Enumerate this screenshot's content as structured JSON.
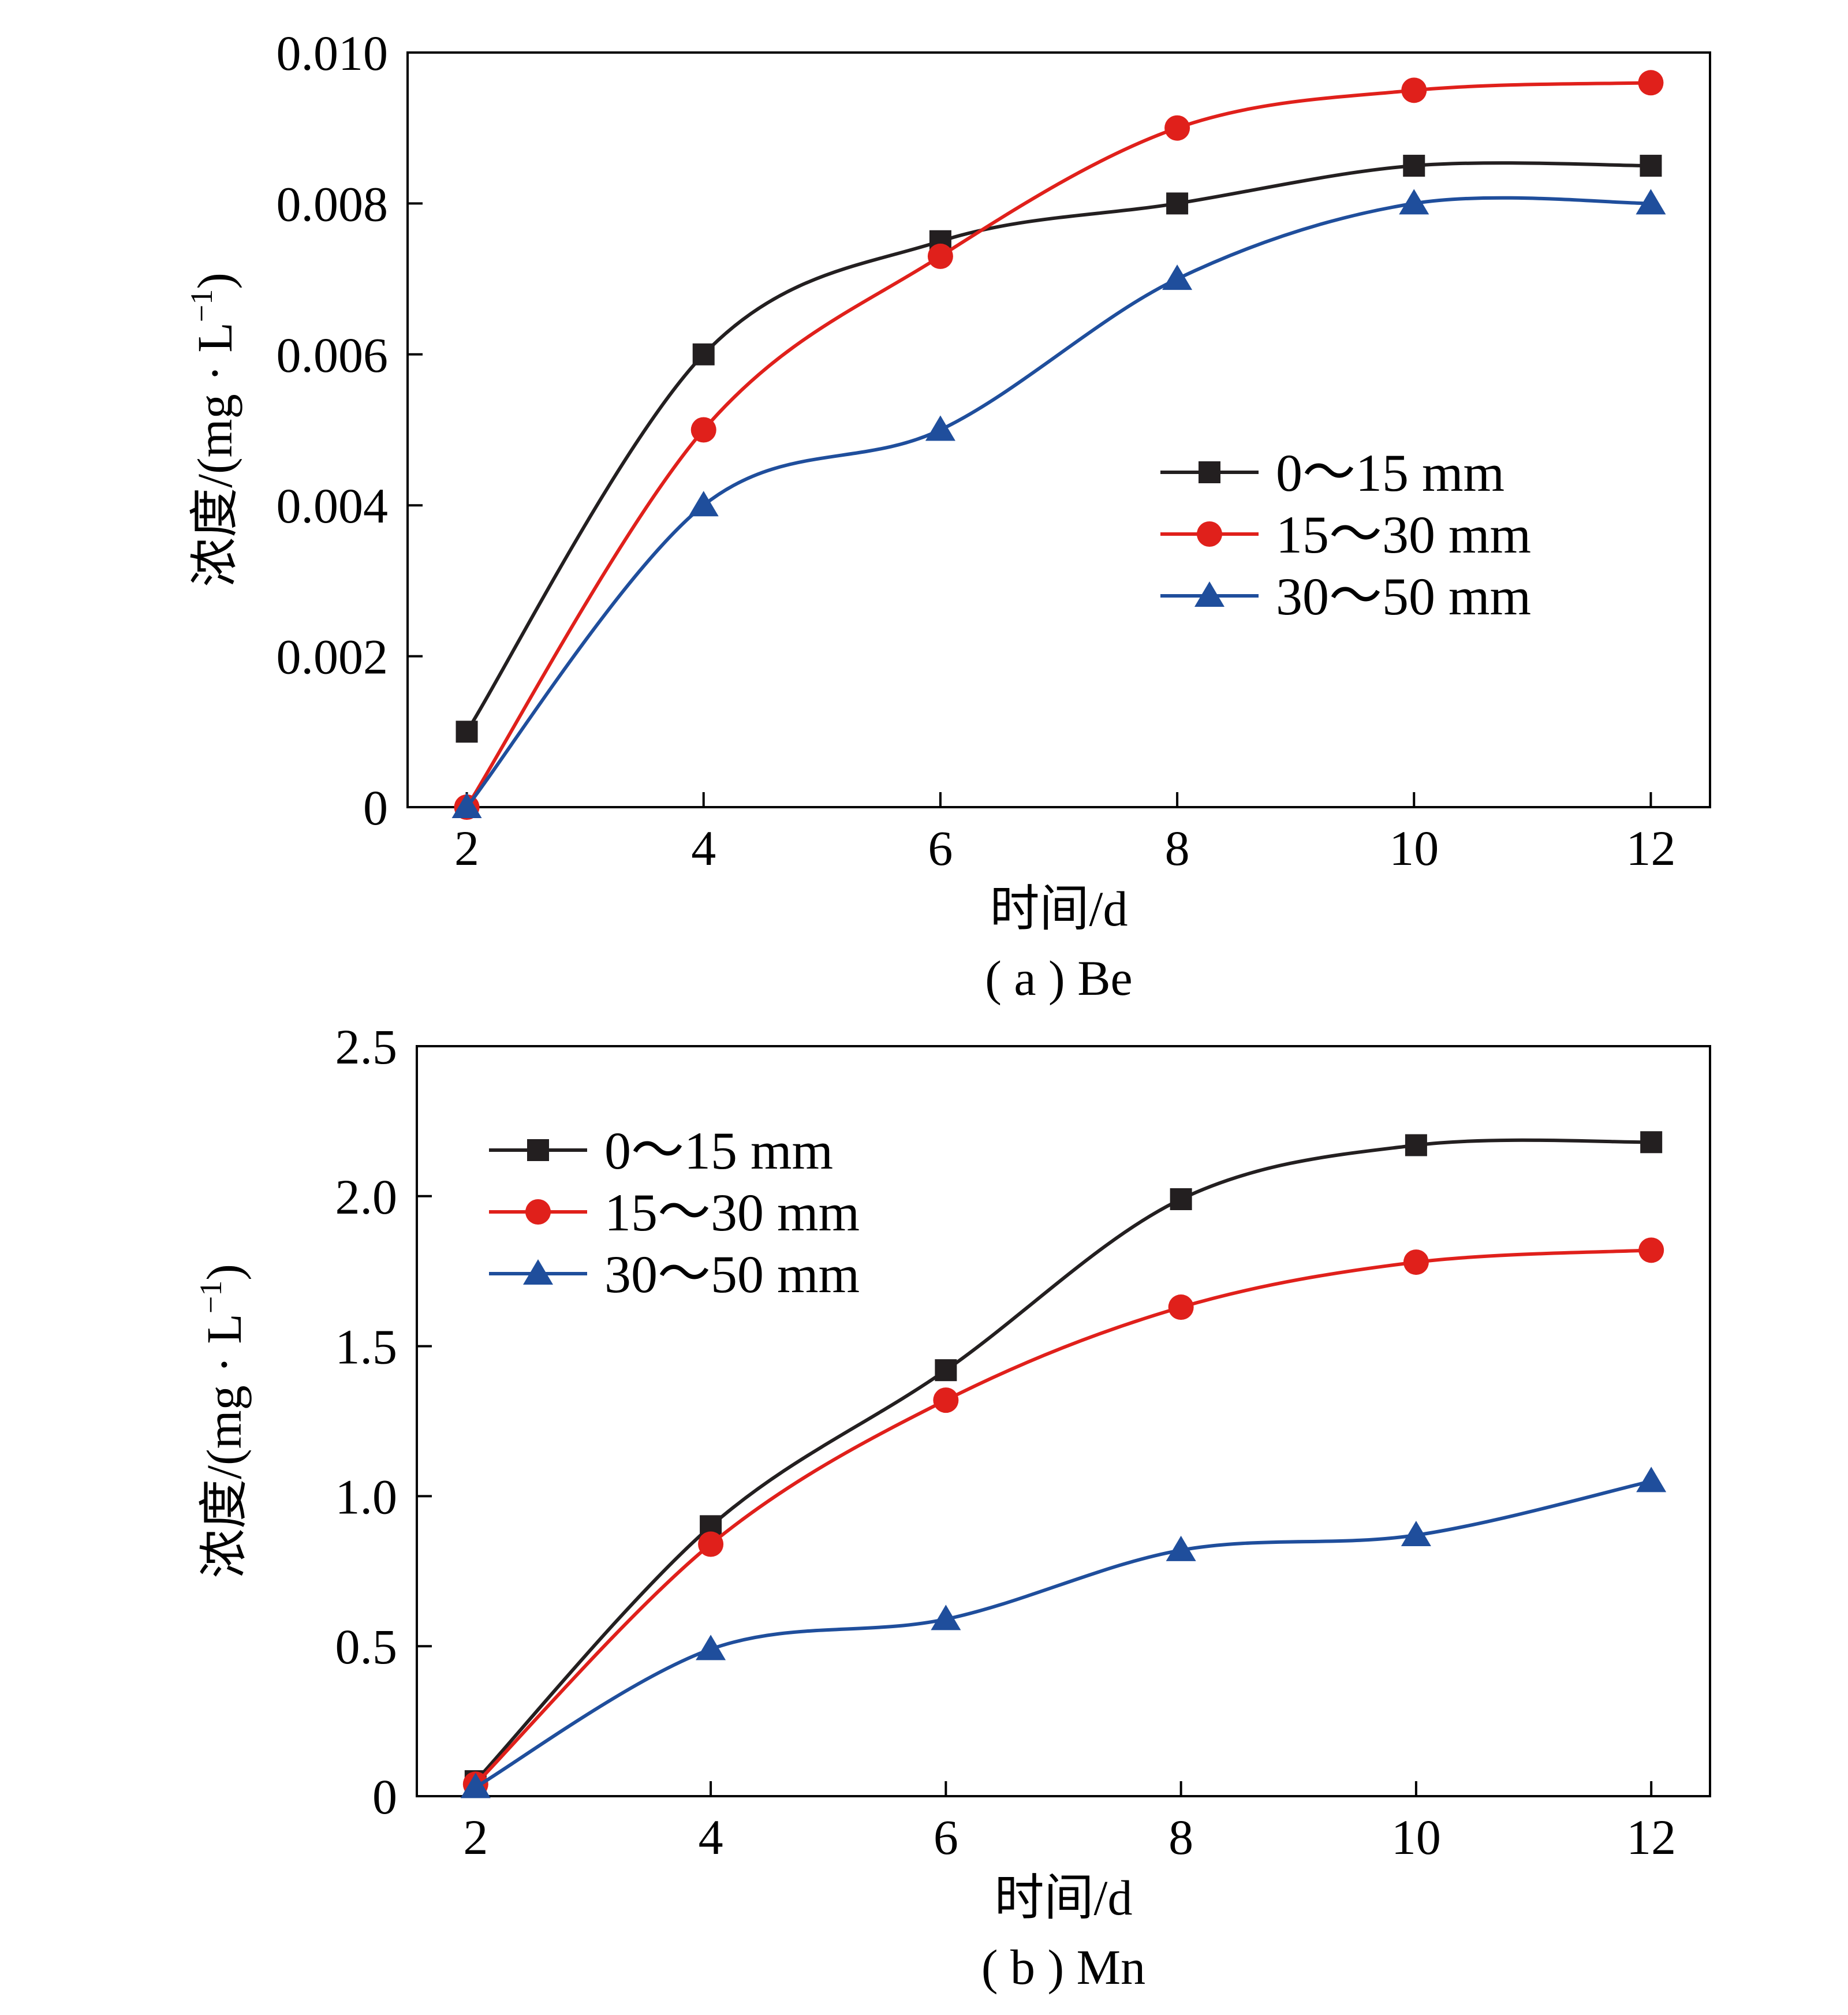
{
  "chart_data": [
    {
      "type": "line",
      "caption": "( a ) Be",
      "xlabel": "时间/d",
      "ylabel": "浓度/(mg · L",
      "ylabel_sup": "−1",
      "ylabel_end": ")",
      "x": [
        2,
        4,
        6,
        8,
        10,
        12
      ],
      "x_ticks": [
        "2",
        "4",
        "6",
        "8",
        "10",
        "12"
      ],
      "xlim": [
        1.5,
        12.5
      ],
      "ylim": [
        0,
        0.01
      ],
      "y_ticks": [
        0,
        0.002,
        0.004,
        0.006,
        0.008,
        0.01
      ],
      "y_tick_labels": [
        "0",
        "0.002",
        "0.004",
        "0.006",
        "0.008",
        "0.010"
      ],
      "legend_position": "center-right",
      "series": [
        {
          "name": "0～15 mm",
          "color": "#231f20",
          "marker": "square",
          "values": [
            0.001,
            0.006,
            0.0075,
            0.008,
            0.0085,
            0.0085
          ]
        },
        {
          "name": "15～30 mm",
          "color": "#e0201b",
          "marker": "circle",
          "values": [
            0.0,
            0.005,
            0.0073,
            0.009,
            0.0095,
            0.0096
          ]
        },
        {
          "name": "30～50 mm",
          "color": "#1f4e9c",
          "marker": "triangle",
          "values": [
            0.0,
            0.004,
            0.005,
            0.007,
            0.008,
            0.008
          ]
        }
      ]
    },
    {
      "type": "line",
      "caption": "( b ) Mn",
      "xlabel": "时间/d",
      "ylabel": "浓度/(mg · L",
      "ylabel_sup": "−1",
      "ylabel_end": ")",
      "x": [
        2,
        4,
        6,
        8,
        10,
        12
      ],
      "x_ticks": [
        "2",
        "4",
        "6",
        "8",
        "10",
        "12"
      ],
      "xlim": [
        1.5,
        12.5
      ],
      "ylim": [
        0,
        2.5
      ],
      "y_ticks": [
        0,
        0.5,
        1.0,
        1.5,
        2.0,
        2.5
      ],
      "y_tick_labels": [
        "0",
        "0.5",
        "1.0",
        "1.5",
        "2.0",
        "2.5"
      ],
      "legend_position": "top-left",
      "series": [
        {
          "name": "0～15 mm",
          "color": "#231f20",
          "marker": "square",
          "values": [
            0.05,
            0.9,
            1.42,
            1.99,
            2.17,
            2.18
          ]
        },
        {
          "name": "15～30 mm",
          "color": "#e0201b",
          "marker": "circle",
          "values": [
            0.04,
            0.84,
            1.32,
            1.63,
            1.78,
            1.82
          ]
        },
        {
          "name": "30～50 mm",
          "color": "#1f4e9c",
          "marker": "triangle",
          "values": [
            0.03,
            0.49,
            0.59,
            0.82,
            0.87,
            1.05
          ]
        }
      ]
    }
  ]
}
